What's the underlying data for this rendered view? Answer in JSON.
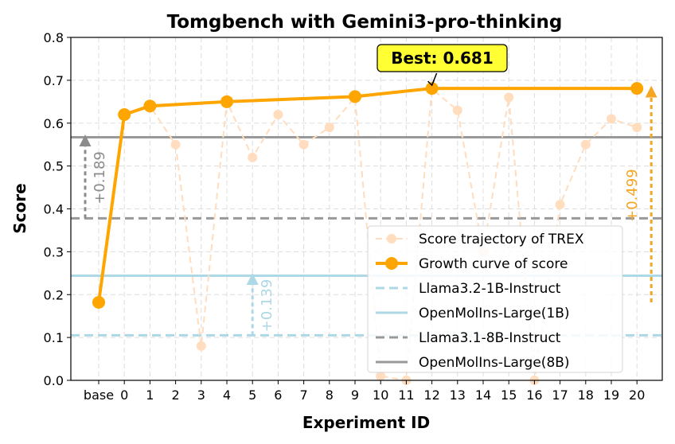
{
  "chart_data": {
    "type": "line",
    "title": "Tomgbench with Gemini3-pro-thinking",
    "xlabel": "Experiment ID",
    "ylabel": "Score",
    "ylim": [
      0,
      0.8
    ],
    "yticks": [
      0.0,
      0.1,
      0.2,
      0.3,
      0.4,
      0.5,
      0.6,
      0.7,
      0.8
    ],
    "ytick_labels": [
      "0.0",
      "0.1",
      "0.2",
      "0.3",
      "0.4",
      "0.5",
      "0.6",
      "0.7",
      "0.8"
    ],
    "categories": [
      "base",
      "0",
      "1",
      "2",
      "3",
      "4",
      "5",
      "6",
      "7",
      "8",
      "9",
      "10",
      "11",
      "12",
      "13",
      "14",
      "15",
      "16",
      "17",
      "18",
      "19",
      "20"
    ],
    "grid": true,
    "series": [
      {
        "name": "Score trajectory of TREX",
        "style": "dashed-faint",
        "color": "#FFDDBE",
        "x": [
          "0",
          "1",
          "2",
          "3",
          "4",
          "5",
          "6",
          "7",
          "8",
          "9",
          "10",
          "11",
          "12",
          "13",
          "14",
          "15",
          "16",
          "17",
          "18",
          "19",
          "20"
        ],
        "values": [
          0.62,
          0.64,
          0.55,
          0.08,
          0.65,
          0.52,
          0.62,
          0.55,
          0.59,
          0.66,
          0.01,
          0.0,
          0.68,
          0.63,
          0.3,
          0.66,
          0.0,
          0.41,
          0.55,
          0.61,
          0.59
        ]
      },
      {
        "name": "Growth curve of score",
        "style": "solid-bold",
        "color": "#FFA500",
        "x": [
          "base",
          "0",
          "1",
          "4",
          "9",
          "12",
          "20"
        ],
        "values": [
          0.182,
          0.62,
          0.64,
          0.65,
          0.662,
          0.681,
          0.681
        ]
      }
    ],
    "baselines": [
      {
        "name": "Llama3.2-1B-Instruct",
        "value": 0.105,
        "style": "dashed",
        "color": "#ADD8E6"
      },
      {
        "name": "OpenMolIns-Large(1B)",
        "value": 0.244,
        "style": "solid",
        "color": "#ADD8E6"
      },
      {
        "name": "Llama3.1-8B-Instruct",
        "value": 0.378,
        "style": "dashed",
        "color": "#999999"
      },
      {
        "name": "OpenMolIns-Large(8B)",
        "value": 0.567,
        "style": "solid",
        "color": "#999999"
      }
    ],
    "annotations": [
      {
        "text": "+0.189",
        "at": "base",
        "from": 0.378,
        "to": 0.567,
        "color": "#8C8C8C"
      },
      {
        "text": "+0.139",
        "at": "5",
        "from": 0.105,
        "to": 0.244,
        "color": "#ADD8E6"
      },
      {
        "text": "+0.499",
        "at": "20",
        "from": 0.182,
        "to": 0.681,
        "color": "#F5A623"
      }
    ],
    "best": {
      "label": "Best: 0.681",
      "value": 0.681,
      "at": "12",
      "box_color": "#FFFF33"
    },
    "legend_position": "lower-right"
  }
}
